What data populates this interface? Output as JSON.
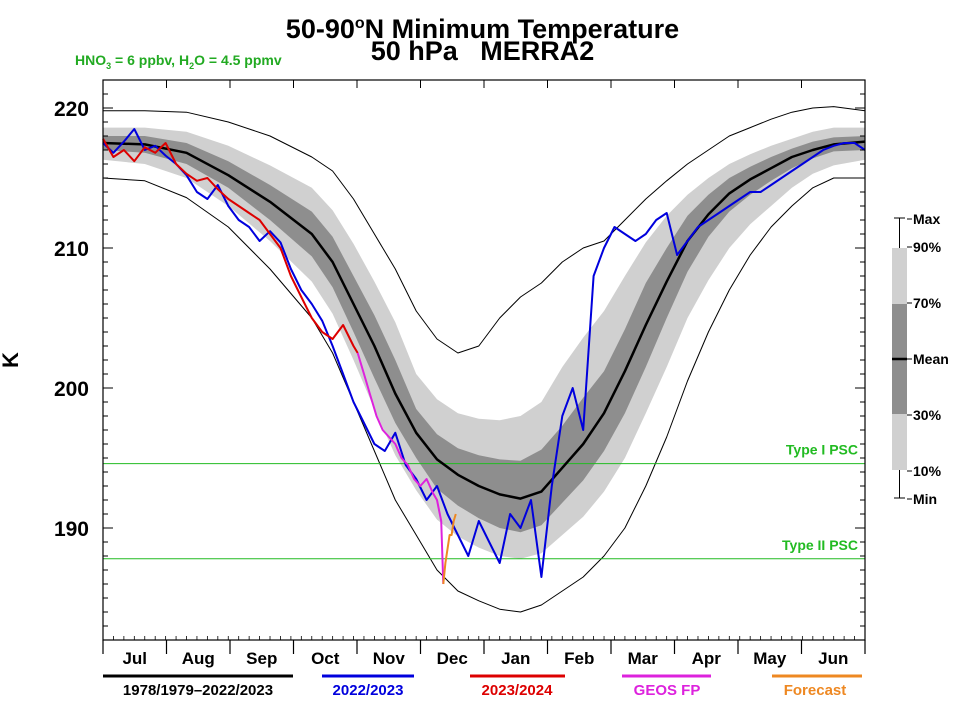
{
  "header": {
    "title_main": "50-90",
    "title_sup": "o",
    "title_rest": "N Minimum Temperature",
    "subtitle": "50 hPa   MERRA2",
    "conditions": {
      "hno3_label": "HNO",
      "hno3_sub": "3",
      "hno3_value": " = 6 ppbv, H",
      "h2o_sub": "2",
      "h2o_value": "O = 4.5 ppmv"
    }
  },
  "chart_data": {
    "type": "line",
    "ylabel": "K",
    "ylim": [
      182,
      222
    ],
    "yticks": [
      190,
      200,
      210,
      220
    ],
    "months": [
      "Jul",
      "Aug",
      "Sep",
      "Oct",
      "Nov",
      "Dec",
      "Jan",
      "Feb",
      "Mar",
      "Apr",
      "May",
      "Jun"
    ],
    "reference_lines": [
      {
        "label": "Type I PSC",
        "value": 194.6,
        "color": "#22bb22"
      },
      {
        "label": "Type II PSC",
        "value": 187.8,
        "color": "#22bb22"
      }
    ],
    "climatology_days": [
      0,
      20,
      40,
      60,
      80,
      100,
      110,
      120,
      130,
      140,
      150,
      160,
      170,
      180,
      190,
      200,
      210,
      220,
      230,
      240,
      250,
      260,
      270,
      280,
      290,
      300,
      310,
      320,
      330,
      340,
      350,
      365
    ],
    "climatology": {
      "mean": [
        217.5,
        217.4,
        216.8,
        215.2,
        213.3,
        211.0,
        209.0,
        206.0,
        203.0,
        199.6,
        196.8,
        194.9,
        193.8,
        193.0,
        192.4,
        192.1,
        192.6,
        194.3,
        196.0,
        198.2,
        201.2,
        204.5,
        207.6,
        210.5,
        212.4,
        213.9,
        214.9,
        215.7,
        216.5,
        217.0,
        217.4,
        217.6
      ],
      "p30": [
        217.0,
        216.8,
        216.0,
        214.3,
        212.0,
        209.4,
        207.2,
        204.0,
        200.7,
        197.5,
        195.0,
        192.8,
        191.6,
        190.7,
        190.0,
        189.7,
        190.2,
        191.8,
        193.4,
        195.5,
        198.2,
        201.5,
        205.0,
        208.3,
        210.8,
        212.6,
        213.8,
        214.8,
        215.7,
        216.4,
        216.9,
        217.0
      ],
      "p70": [
        218.0,
        218.0,
        217.5,
        216.2,
        214.5,
        212.6,
        210.8,
        208.0,
        205.2,
        202.0,
        198.5,
        196.7,
        195.7,
        195.2,
        194.9,
        194.8,
        195.6,
        197.3,
        199.3,
        201.2,
        204.2,
        207.5,
        210.0,
        212.3,
        213.8,
        215.0,
        215.8,
        216.5,
        217.1,
        217.6,
        217.9,
        218.0
      ],
      "p10": [
        216.3,
        216.0,
        215.0,
        213.0,
        210.5,
        207.6,
        205.3,
        202.0,
        198.5,
        195.2,
        192.7,
        190.6,
        189.4,
        188.6,
        188.0,
        187.8,
        188.2,
        189.5,
        190.8,
        192.6,
        195.0,
        198.2,
        201.5,
        205.0,
        207.7,
        210.0,
        211.7,
        213.0,
        214.3,
        215.3,
        215.9,
        216.3
      ],
      "p90": [
        218.6,
        218.6,
        218.3,
        217.3,
        215.9,
        214.3,
        212.7,
        210.3,
        207.6,
        204.7,
        201.0,
        199.2,
        198.2,
        197.8,
        197.7,
        198.0,
        199.0,
        201.5,
        203.6,
        205.5,
        208.0,
        210.4,
        212.3,
        213.8,
        215.0,
        216.0,
        216.7,
        217.3,
        217.8,
        218.3,
        218.6,
        218.6
      ],
      "min": [
        215.0,
        214.8,
        213.6,
        211.5,
        208.5,
        205.0,
        202.5,
        199.0,
        195.5,
        192.0,
        189.5,
        187.0,
        185.5,
        184.8,
        184.2,
        184.0,
        184.5,
        185.5,
        186.5,
        188.0,
        190.0,
        193.0,
        196.5,
        200.5,
        204.0,
        207.0,
        209.5,
        211.5,
        213.0,
        214.3,
        215.0,
        215.0
      ],
      "max": [
        219.8,
        219.8,
        219.7,
        219.0,
        218.0,
        216.5,
        215.5,
        213.5,
        211.0,
        208.5,
        205.5,
        203.5,
        202.5,
        203.0,
        205.0,
        206.5,
        207.5,
        209.0,
        210.0,
        210.5,
        212.0,
        213.5,
        214.8,
        216.0,
        217.0,
        218.0,
        218.6,
        219.2,
        219.7,
        220.0,
        220.1,
        219.8
      ]
    },
    "series": [
      {
        "name": "1978/1979–2022/2023",
        "color": "#000000",
        "days": [
          0,
          20,
          40,
          60,
          80,
          100,
          110,
          120,
          130,
          140,
          150,
          160,
          170,
          180,
          190,
          200,
          210,
          220,
          230,
          240,
          250,
          260,
          270,
          280,
          290,
          300,
          310,
          320,
          330,
          340,
          350,
          365
        ],
        "values": [
          217.5,
          217.4,
          216.8,
          215.2,
          213.3,
          211.0,
          209.0,
          206.0,
          203.0,
          199.6,
          196.8,
          194.9,
          193.8,
          193.0,
          192.4,
          192.1,
          192.6,
          194.3,
          196.0,
          198.2,
          201.2,
          204.5,
          207.6,
          210.5,
          212.4,
          213.9,
          214.9,
          215.7,
          216.5,
          217.0,
          217.4,
          217.6
        ]
      },
      {
        "name": "2022/2023",
        "color": "#0000dd",
        "days": [
          0,
          5,
          10,
          15,
          20,
          25,
          30,
          35,
          40,
          45,
          50,
          55,
          60,
          65,
          70,
          75,
          80,
          85,
          90,
          95,
          100,
          105,
          110,
          115,
          120,
          125,
          130,
          135,
          140,
          145,
          150,
          155,
          160,
          165,
          170,
          175,
          180,
          185,
          190,
          195,
          200,
          205,
          210,
          215,
          220,
          225,
          230,
          235,
          240,
          245,
          250,
          255,
          260,
          265,
          270,
          275,
          280,
          285,
          290,
          295,
          300,
          305,
          310,
          315,
          320,
          325,
          330,
          335,
          340,
          345,
          350,
          355,
          360,
          365
        ],
        "values": [
          217.5,
          216.8,
          217.6,
          218.5,
          217.0,
          217.3,
          216.6,
          216.0,
          215.2,
          214.0,
          213.5,
          214.5,
          213.0,
          212.0,
          211.5,
          210.5,
          211.2,
          210.4,
          208.5,
          207.0,
          206.0,
          204.8,
          203.0,
          201.0,
          199.0,
          197.5,
          196.0,
          195.5,
          196.8,
          194.5,
          193.5,
          192.0,
          193.0,
          191.0,
          189.5,
          188.0,
          190.5,
          189.0,
          187.5,
          191.0,
          190.0,
          192.0,
          186.5,
          193.0,
          198.0,
          200.0,
          197.0,
          208.0,
          210.0,
          211.5,
          211.0,
          210.5,
          211.0,
          212.0,
          212.5,
          209.5,
          210.5,
          211.5,
          212.0,
          212.5,
          213.0,
          213.5,
          214.0,
          214.0,
          214.5,
          215.0,
          215.5,
          216.0,
          216.5,
          217.0,
          217.3,
          217.5,
          217.5,
          217.0
        ]
      },
      {
        "name": "2023/2024",
        "color": "#dd0000",
        "days": [
          0,
          5,
          10,
          15,
          20,
          25,
          30,
          35,
          40,
          45,
          50,
          55,
          60,
          65,
          70,
          75,
          80,
          85,
          90,
          95,
          100,
          105,
          110,
          115,
          120,
          122
        ],
        "values": [
          217.8,
          216.5,
          217.0,
          216.2,
          217.2,
          216.8,
          217.5,
          216.0,
          215.3,
          214.8,
          215.0,
          214.2,
          213.5,
          213.0,
          212.5,
          212.0,
          211.0,
          210.0,
          208.0,
          206.5,
          205.0,
          204.0,
          203.5,
          204.5,
          203.0,
          202.5
        ]
      },
      {
        "name": "GEOS FP",
        "color": "#dd22dd",
        "days": [
          122,
          125,
          128,
          131,
          134,
          137,
          140,
          143,
          146,
          149,
          152,
          155,
          158,
          160,
          162,
          163
        ],
        "values": [
          202.5,
          201.0,
          199.5,
          198.0,
          197.0,
          196.5,
          196.0,
          195.0,
          194.5,
          193.5,
          193.0,
          193.5,
          192.5,
          192.0,
          190.5,
          186.0
        ]
      },
      {
        "name": "Forecast",
        "color": "#ee8822",
        "days": [
          163,
          164,
          165,
          166,
          167,
          168,
          169
        ],
        "values": [
          186.0,
          187.5,
          188.5,
          189.5,
          189.5,
          190.5,
          191.0
        ]
      }
    ],
    "legend_side": [
      "Max",
      "90%",
      "70%",
      "Mean",
      "30%",
      "10%",
      "Min"
    ]
  }
}
